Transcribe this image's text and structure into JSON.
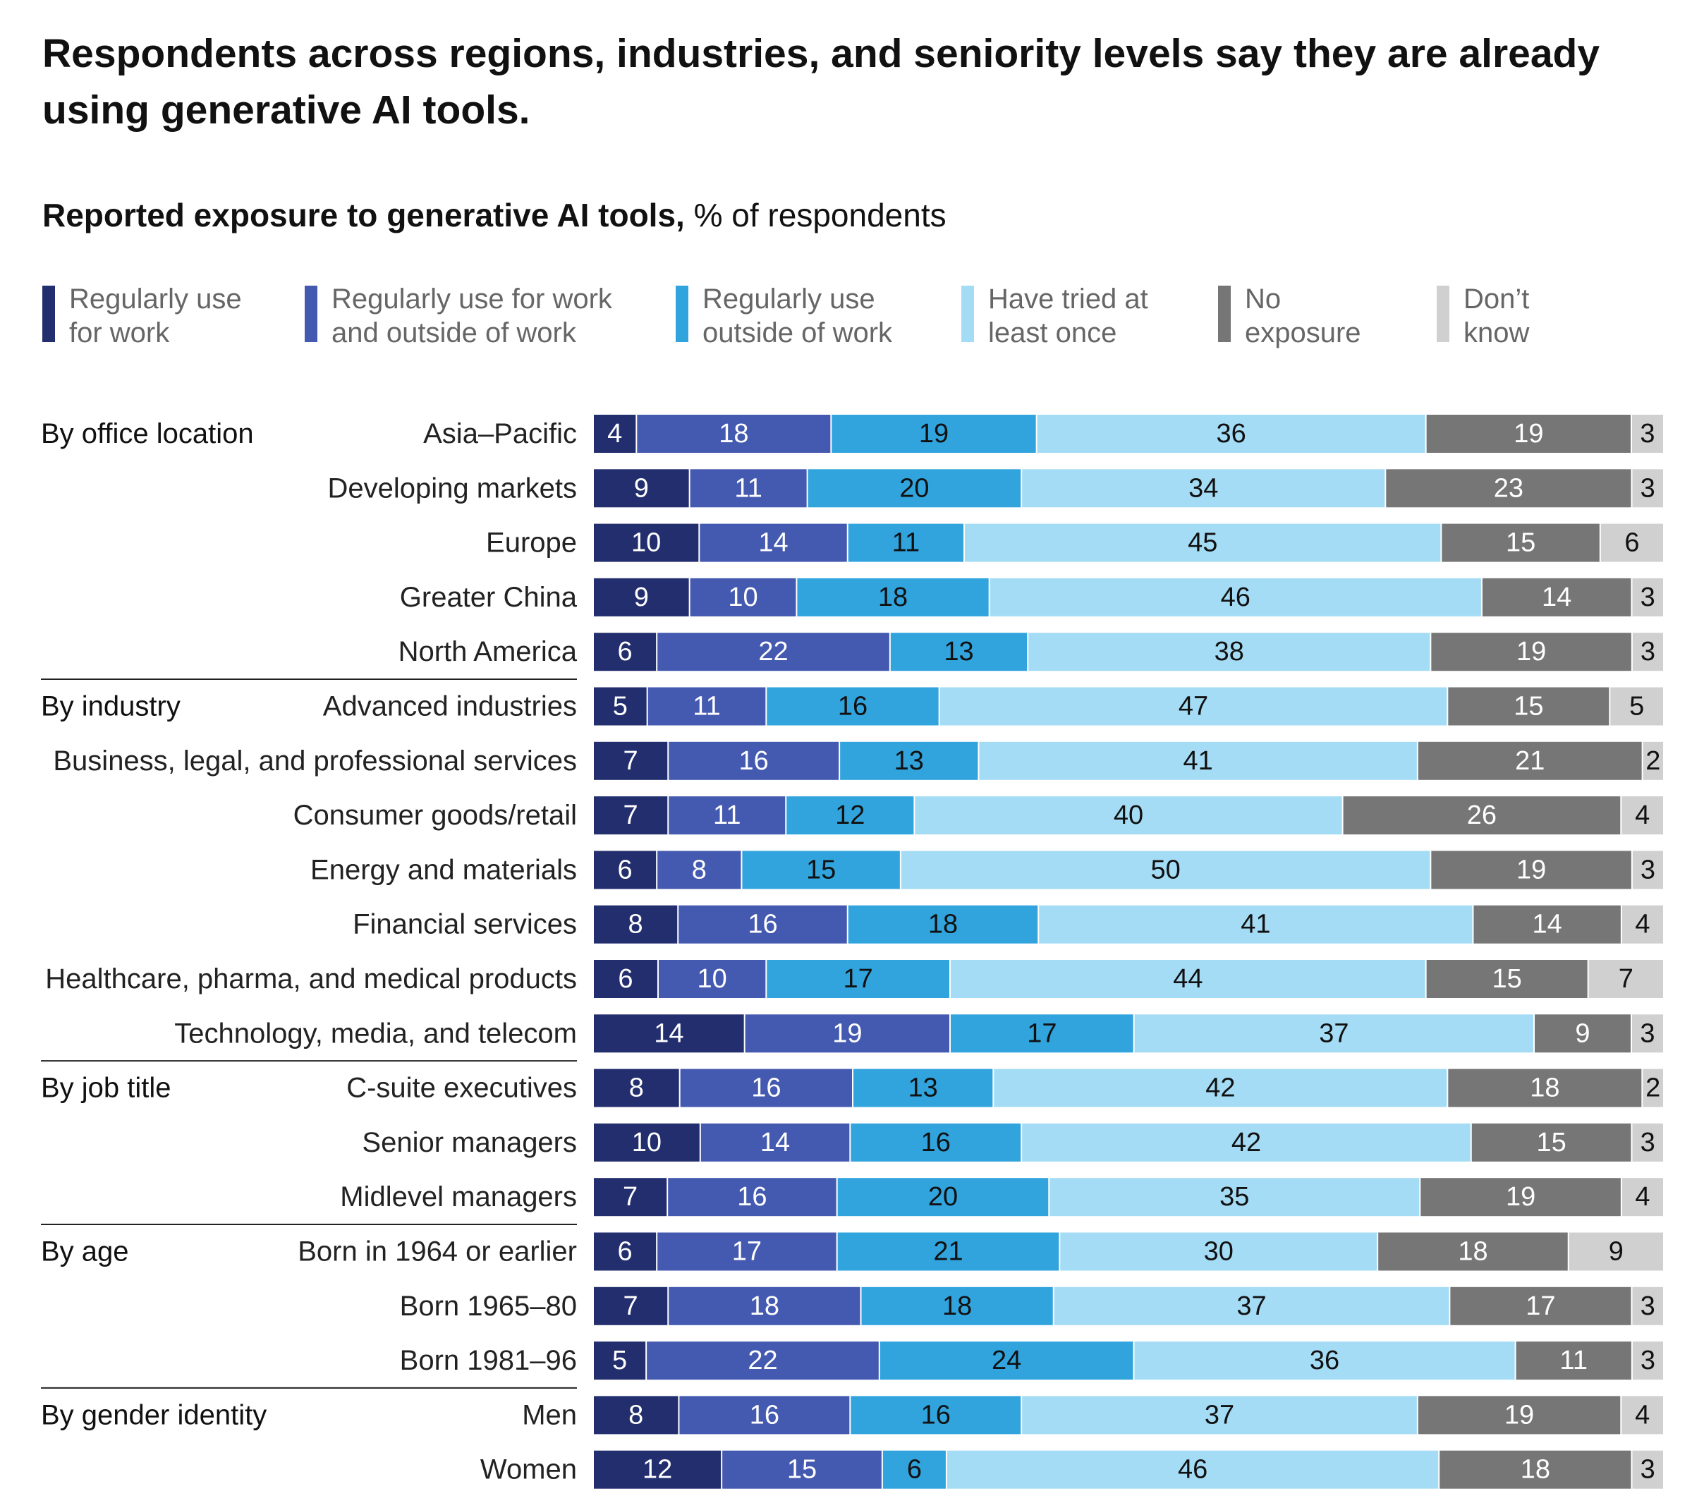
{
  "title": "Respondents across regions, industries, and seniority levels say they are already using generative AI tools.",
  "subtitle_bold": "Reported exposure to generative AI tools,",
  "subtitle_rest": " % of respondents",
  "chart_data": {
    "type": "bar",
    "orientation": "horizontal-stacked-100",
    "series": [
      {
        "name": "Regularly use\nfor work",
        "color": "#232E6E"
      },
      {
        "name": "Regularly use for work\nand outside of work",
        "color": "#4459B0"
      },
      {
        "name": "Regularly use\noutside of work",
        "color": "#31A4DE"
      },
      {
        "name": "Have tried at\nleast once",
        "color": "#A5DCF5"
      },
      {
        "name": "No\nexposure",
        "color": "#767676"
      },
      {
        "name": "Don’t\nknow",
        "color": "#D0D0D0"
      }
    ],
    "groups": [
      {
        "label": "By office location",
        "rows": [
          {
            "label": "Asia–Pacific",
            "values": [
              4,
              18,
              19,
              36,
              19,
              3
            ]
          },
          {
            "label": "Developing markets",
            "values": [
              9,
              11,
              20,
              34,
              23,
              3
            ]
          },
          {
            "label": "Europe",
            "values": [
              10,
              14,
              11,
              45,
              15,
              6
            ]
          },
          {
            "label": "Greater China",
            "values": [
              9,
              10,
              18,
              46,
              14,
              3
            ]
          },
          {
            "label": "North America",
            "values": [
              6,
              22,
              13,
              38,
              19,
              3
            ]
          }
        ]
      },
      {
        "label": "By industry",
        "rows": [
          {
            "label": "Advanced industries",
            "values": [
              5,
              11,
              16,
              47,
              15,
              5
            ]
          },
          {
            "label": "Business, legal, and professional services",
            "values": [
              7,
              16,
              13,
              41,
              21,
              2
            ]
          },
          {
            "label": "Consumer goods/retail",
            "values": [
              7,
              11,
              12,
              40,
              26,
              4
            ]
          },
          {
            "label": "Energy and materials",
            "values": [
              6,
              8,
              15,
              50,
              19,
              3
            ]
          },
          {
            "label": "Financial services",
            "values": [
              8,
              16,
              18,
              41,
              14,
              4
            ]
          },
          {
            "label": "Healthcare, pharma, and medical products",
            "values": [
              6,
              10,
              17,
              44,
              15,
              7
            ]
          },
          {
            "label": "Technology, media, and telecom",
            "values": [
              14,
              19,
              17,
              37,
              9,
              3
            ]
          }
        ]
      },
      {
        "label": "By job title",
        "rows": [
          {
            "label": "C-suite executives",
            "values": [
              8,
              16,
              13,
              42,
              18,
              2
            ]
          },
          {
            "label": "Senior managers",
            "values": [
              10,
              14,
              16,
              42,
              15,
              3
            ]
          },
          {
            "label": "Midlevel managers",
            "values": [
              7,
              16,
              20,
              35,
              19,
              4
            ]
          }
        ]
      },
      {
        "label": "By age",
        "rows": [
          {
            "label": "Born in 1964 or earlier",
            "values": [
              6,
              17,
              21,
              30,
              18,
              9
            ]
          },
          {
            "label": "Born 1965–80",
            "values": [
              7,
              18,
              18,
              37,
              17,
              3
            ]
          },
          {
            "label": "Born 1981–96",
            "values": [
              5,
              22,
              24,
              36,
              11,
              3
            ]
          }
        ]
      },
      {
        "label": "By gender identity",
        "rows": [
          {
            "label": "Men",
            "values": [
              8,
              16,
              16,
              37,
              19,
              4
            ]
          },
          {
            "label": "Women",
            "values": [
              12,
              15,
              6,
              46,
              18,
              3
            ]
          }
        ]
      }
    ],
    "label_text_colors": [
      "#ffffff",
      "#ffffff",
      "#111111",
      "#111111",
      "#ffffff",
      "#111111"
    ],
    "legend_position": "top",
    "grid": false
  }
}
